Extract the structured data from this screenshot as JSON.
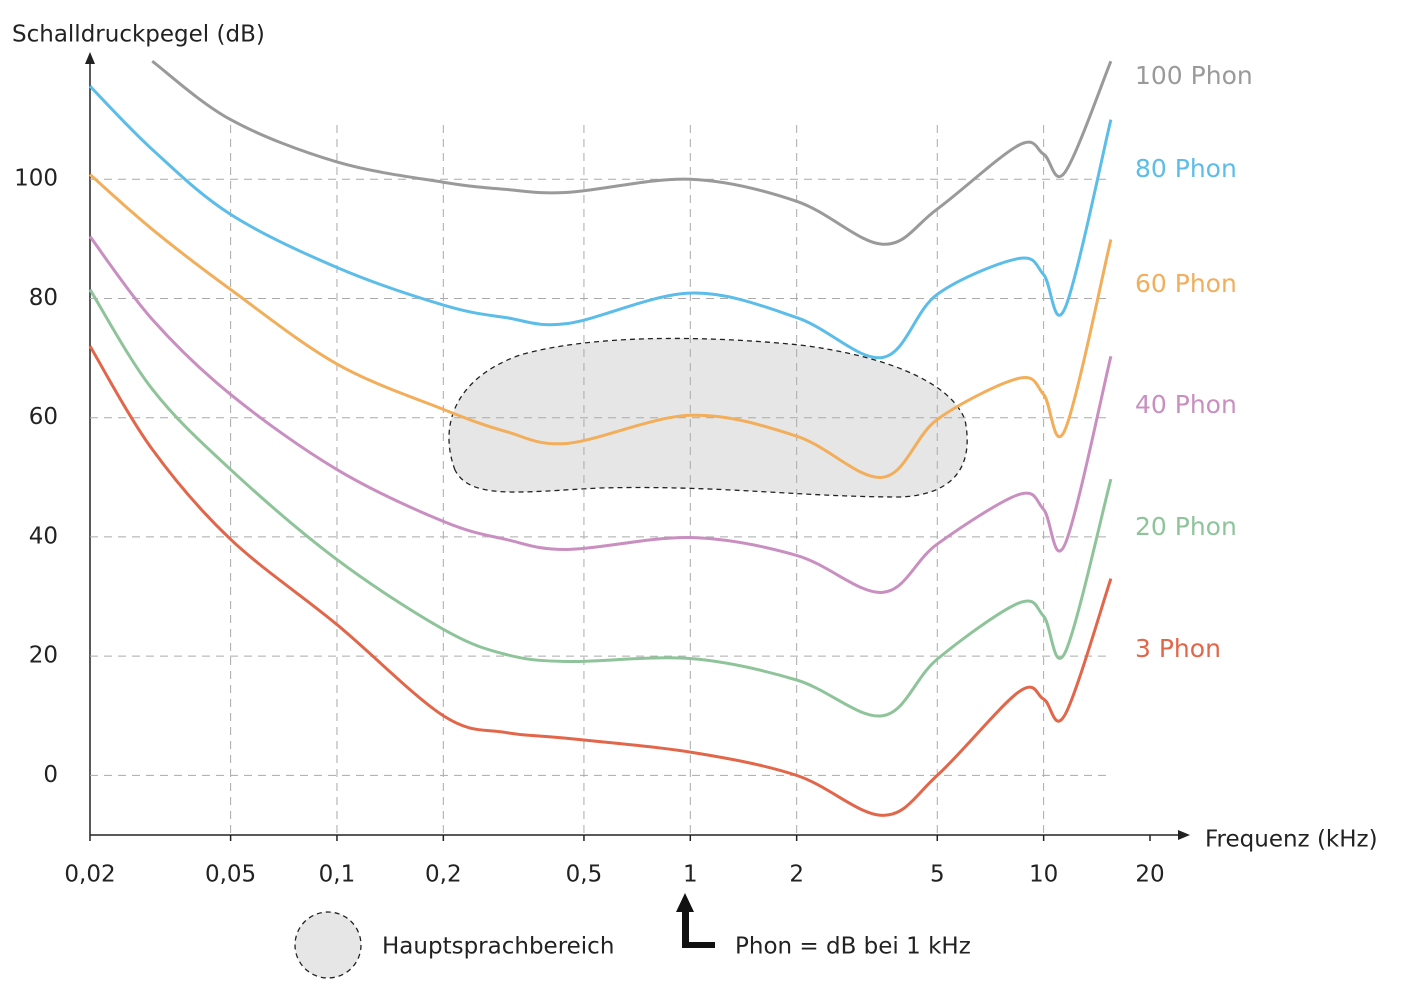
{
  "chart_data": {
    "type": "line",
    "y_label": "Schalldruckpegel (dB)",
    "x_label": "Frequenz (kHz)",
    "log_x": true,
    "grid": true,
    "x": [
      0.02,
      0.03,
      0.05,
      0.1,
      0.2,
      0.3,
      0.45,
      1,
      2,
      3.5,
      5,
      8.5,
      10,
      11.5,
      15.5
    ],
    "series": [
      {
        "name": "100 Phon",
        "color": "#9a9a9a",
        "values": [
          null,
          119.8,
          110,
          102.9,
          99.5,
          98.3,
          97.8,
          100,
          96.3,
          89.1,
          95,
          105.7,
          104.2,
          101.2,
          119.8
        ]
      },
      {
        "name": "80 Phon",
        "color": "#5bbde8",
        "values": [
          115.6,
          105,
          94.1,
          85.2,
          78.9,
          76.8,
          75.8,
          80.9,
          76.8,
          70.1,
          80.7,
          86.7,
          84,
          78.4,
          110
        ]
      },
      {
        "name": "60 Phon",
        "color": "#f2ae5a",
        "values": [
          100.8,
          91.6,
          81.5,
          69,
          61.4,
          57.7,
          55.7,
          60.4,
          56.9,
          50,
          59.7,
          66.6,
          63.9,
          58,
          89.9
        ]
      },
      {
        "name": "40 Phon",
        "color": "#c98fc0",
        "values": [
          90.4,
          76.5,
          63.9,
          51.3,
          42.6,
          39.6,
          37.9,
          39.9,
          36.9,
          30.7,
          38.8,
          47.1,
          44.6,
          38.8,
          70.3
        ]
      },
      {
        "name": "20 Phon",
        "color": "#8fc49a",
        "values": [
          81.5,
          64.8,
          51.3,
          36.2,
          24.5,
          20.3,
          19.1,
          19.6,
          16,
          10,
          19.5,
          28.9,
          26.7,
          20.6,
          49.7
        ]
      },
      {
        "name": "3 Phon",
        "color": "#e2664a",
        "values": [
          72,
          54.7,
          39.6,
          25.3,
          10,
          7.2,
          6.2,
          3.9,
          0,
          -6.7,
          0,
          14,
          12.8,
          10.2,
          33
        ]
      }
    ],
    "xlim": [
      0.02,
      20
    ],
    "ylim": [
      -10,
      120
    ],
    "xticks": [
      {
        "value": 0.02,
        "label": "0,02"
      },
      {
        "value": 0.05,
        "label": "0,05"
      },
      {
        "value": 0.1,
        "label": "0,1"
      },
      {
        "value": 0.2,
        "label": "0,2"
      },
      {
        "value": 0.5,
        "label": "0,5"
      },
      1,
      2,
      5,
      10,
      20
    ],
    "yticks": [
      0,
      20,
      40,
      60,
      80,
      100
    ],
    "legend": {
      "region_label": "Hauptsprachbereich",
      "reference_note": "Phon = dB bei 1 kHz"
    }
  }
}
